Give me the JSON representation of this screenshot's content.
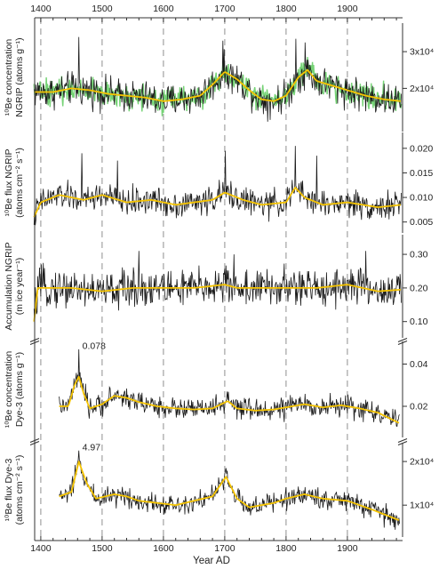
{
  "chart_data": {
    "type": "line",
    "xlabel": "Year AD",
    "x_ticks": [
      1400,
      1500,
      1600,
      1700,
      1800,
      1900
    ],
    "xlim": [
      1390,
      1990
    ],
    "vertical_reference_lines": [
      1400,
      1500,
      1600,
      1700,
      1800,
      1900
    ],
    "colors": {
      "raw": "#1a1a1a",
      "smoothed": "#f5c400",
      "ngrip_trace": "#5ecb5e",
      "grid": "#9a9a9a",
      "axis": "#333333"
    },
    "panels": [
      {
        "id": "be10-conc-ngrip",
        "ylabel": [
          "¹⁰Be concentration",
          "NGRIP (atoms g⁻¹)"
        ],
        "y_axis_side": "right",
        "y_ticks": [
          20000,
          30000
        ],
        "y_tick_labels": [
          "2x10⁴",
          "3x10⁴"
        ],
        "ylim": [
          10000,
          36000
        ],
        "x_start": 1389,
        "x_end": 1988,
        "baseline": 18500,
        "amplitude": 3500,
        "spikes": [
          {
            "x": 1462,
            "y": 34000
          },
          {
            "x": 1697,
            "y": 33000
          },
          {
            "x": 1816,
            "y": 33500
          },
          {
            "x": 1831,
            "y": 32500
          }
        ],
        "smoothed": {
          "x": [
            1389,
            1420,
            1450,
            1480,
            1510,
            1540,
            1570,
            1600,
            1630,
            1660,
            1680,
            1700,
            1720,
            1740,
            1760,
            1780,
            1800,
            1820,
            1835,
            1850,
            1870,
            1900,
            1930,
            1960,
            1988
          ],
          "y": [
            19000,
            19000,
            20000,
            19500,
            18500,
            18000,
            17500,
            16500,
            17000,
            18000,
            21000,
            24500,
            22500,
            19500,
            17000,
            16500,
            18000,
            23000,
            25000,
            22000,
            21000,
            19500,
            18000,
            17000,
            16500
          ]
        },
        "has_green_trace": true
      },
      {
        "id": "be10-flux-ngrip",
        "ylabel": [
          "¹⁰Be flux NGRIP",
          "(atoms cm⁻² s⁻¹)"
        ],
        "y_axis_side": "right",
        "y_ticks": [
          0.005,
          0.01,
          0.015,
          0.02
        ],
        "y_tick_labels": [
          "0.005",
          "0.010",
          "0.015",
          "0.020"
        ],
        "ylim": [
          0.004,
          0.022
        ],
        "x_start": 1389,
        "x_end": 1988,
        "baseline": 0.0093,
        "amplitude": 0.0022,
        "spikes": [
          {
            "x": 1467,
            "y": 0.019
          },
          {
            "x": 1525,
            "y": 0.0175
          },
          {
            "x": 1701,
            "y": 0.0195
          },
          {
            "x": 1815,
            "y": 0.0205
          },
          {
            "x": 1850,
            "y": 0.0185
          }
        ],
        "smoothed": {
          "x": [
            1389,
            1400,
            1430,
            1470,
            1500,
            1540,
            1580,
            1620,
            1650,
            1680,
            1700,
            1730,
            1760,
            1800,
            1815,
            1830,
            1860,
            1900,
            1950,
            1988
          ],
          "y": [
            0.006,
            0.009,
            0.0105,
            0.0095,
            0.0105,
            0.009,
            0.0095,
            0.0085,
            0.009,
            0.0095,
            0.011,
            0.0095,
            0.0085,
            0.009,
            0.012,
            0.01,
            0.0085,
            0.009,
            0.008,
            0.0085
          ]
        },
        "has_green_trace": false
      },
      {
        "id": "accumulation-ngrip",
        "ylabel": [
          "Accumulation NGRIP",
          "(m ice year⁻¹)"
        ],
        "y_axis_side": "right",
        "y_ticks": [
          0.1,
          0.2,
          0.3
        ],
        "y_tick_labels": [
          "0.10",
          "0.20",
          "0.30"
        ],
        "ylim": [
          0.07,
          0.34
        ],
        "x_start": 1389,
        "x_end": 1988,
        "baseline": 0.2,
        "amplitude": 0.045,
        "spikes": [
          {
            "x": 1560,
            "y": 0.31
          },
          {
            "x": 1715,
            "y": 0.3
          },
          {
            "x": 1930,
            "y": 0.31
          }
        ],
        "smoothed": {
          "x": [
            1389,
            1395,
            1410,
            1450,
            1500,
            1550,
            1600,
            1650,
            1700,
            1720,
            1750,
            1800,
            1850,
            1900,
            1950,
            1988
          ],
          "y": [
            0.1,
            0.2,
            0.2,
            0.2,
            0.19,
            0.2,
            0.2,
            0.2,
            0.21,
            0.2,
            0.2,
            0.2,
            0.2,
            0.21,
            0.19,
            0.195
          ]
        },
        "has_green_trace": false
      },
      {
        "id": "be10-conc-dye3",
        "ylabel": [
          "¹⁰Be concentration",
          "Dye-3 (atoms g⁻¹)"
        ],
        "y_axis_side": "right",
        "y_ticks": [
          0.02,
          0.04
        ],
        "y_tick_labels": [
          "0.02",
          "0.04"
        ],
        "ylim": [
          0.008,
          0.048
        ],
        "x_start": 1430,
        "x_end": 1985,
        "baseline": 0.0195,
        "amplitude": 0.004,
        "spikes": [
          {
            "x": 1462,
            "y": 0.047
          }
        ],
        "smoothed": {
          "x": [
            1430,
            1445,
            1455,
            1462,
            1470,
            1480,
            1500,
            1520,
            1540,
            1560,
            1590,
            1620,
            1650,
            1680,
            1705,
            1720,
            1750,
            1780,
            1800,
            1830,
            1860,
            1890,
            1920,
            1950,
            1985
          ],
          "y": [
            0.02,
            0.02,
            0.03,
            0.034,
            0.026,
            0.019,
            0.021,
            0.025,
            0.024,
            0.022,
            0.02,
            0.019,
            0.0185,
            0.019,
            0.0225,
            0.019,
            0.018,
            0.0185,
            0.0195,
            0.021,
            0.0195,
            0.0205,
            0.019,
            0.017,
            0.012
          ]
        },
        "annotation": {
          "text": "0.078",
          "x": 1462
        },
        "has_green_trace": false
      },
      {
        "id": "be10-flux-dye3",
        "ylabel": [
          "¹⁰Be flux Dye-3",
          "(atoms cm⁻² s⁻¹)"
        ],
        "y_axis_side": "right",
        "y_ticks": [
          10000,
          20000
        ],
        "y_tick_labels": [
          "1x10⁴",
          "2x10⁴"
        ],
        "ylim": [
          4000,
          23000
        ],
        "x_start": 1430,
        "x_end": 1985,
        "baseline": 11000,
        "amplitude": 1900,
        "spikes": [
          {
            "x": 1462,
            "y": 22500
          },
          {
            "x": 1702,
            "y": 18500
          }
        ],
        "smoothed": {
          "x": [
            1430,
            1450,
            1462,
            1475,
            1490,
            1520,
            1540,
            1560,
            1590,
            1620,
            1650,
            1680,
            1702,
            1720,
            1740,
            1780,
            1800,
            1830,
            1860,
            1900,
            1940,
            1985
          ],
          "y": [
            12000,
            13000,
            20000,
            15000,
            11500,
            12500,
            12000,
            11000,
            10500,
            10000,
            11000,
            12000,
            16500,
            11500,
            9500,
            10500,
            11500,
            12500,
            11500,
            11000,
            9000,
            6500
          ]
        },
        "annotation": {
          "text": "4.97",
          "x": 1462
        },
        "has_green_trace": false
      }
    ]
  }
}
